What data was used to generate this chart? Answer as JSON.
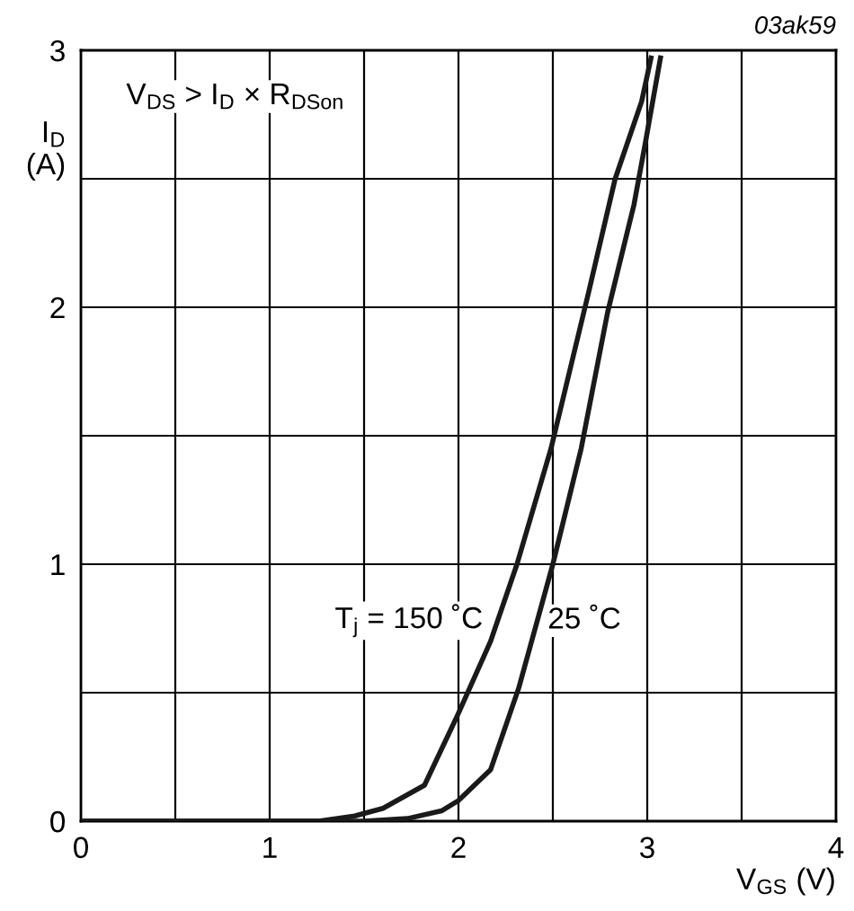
{
  "chart_data": {
    "type": "line",
    "xlabel": "V$_{GS}$ (V)",
    "ylabel": "I$_{D}$\n(A)",
    "xlim": [
      0,
      4
    ],
    "ylim": [
      0,
      3
    ],
    "xticks": [
      0,
      {
        "value": 0.5,
        "label": null
      },
      1,
      {
        "value": 1.5,
        "label": null
      },
      2,
      {
        "value": 2.5,
        "label": null
      },
      3,
      {
        "value": 3.5,
        "label": null
      },
      4
    ],
    "yticks": [
      0,
      {
        "value": 0.5,
        "label": null
      },
      1,
      {
        "value": 1.5,
        "label": null
      },
      2,
      {
        "value": 2.5,
        "label": null
      },
      3
    ],
    "grid": true,
    "line_style": "solid",
    "marker": "none",
    "series": [
      {
        "color": "#1a1a1a",
        "x": [
          0,
          1.0,
          1.26,
          1.45,
          1.6,
          1.82,
          2.0,
          2.17,
          2.31,
          2.49,
          2.69,
          2.83,
          2.97,
          3.02
        ],
        "values": [
          0,
          0,
          0,
          0.02,
          0.05,
          0.14,
          0.42,
          0.7,
          1.0,
          1.45,
          2.06,
          2.5,
          2.8,
          2.97
        ]
      },
      {
        "color": "#1a1a1a",
        "x": [
          0,
          1.5,
          1.73,
          1.91,
          2.0,
          2.17,
          2.32,
          2.5,
          2.65,
          2.79,
          2.93,
          2.99,
          3.07
        ],
        "values": [
          0,
          0,
          0.01,
          0.04,
          0.08,
          0.2,
          0.52,
          1.0,
          1.45,
          1.98,
          2.4,
          2.64,
          2.97
        ]
      }
    ],
    "annotations": [
      {
        "text": "T$_{j}$ = 150 ˚C",
        "x": 2.21,
        "y": 0.78
      },
      {
        "text": "25 ˚C",
        "x": 2.42,
        "y": 0.78
      },
      "V$_{DS}$ > I$_{D}$ × R$_{DSon}$",
      "03ak59"
    ]
  }
}
